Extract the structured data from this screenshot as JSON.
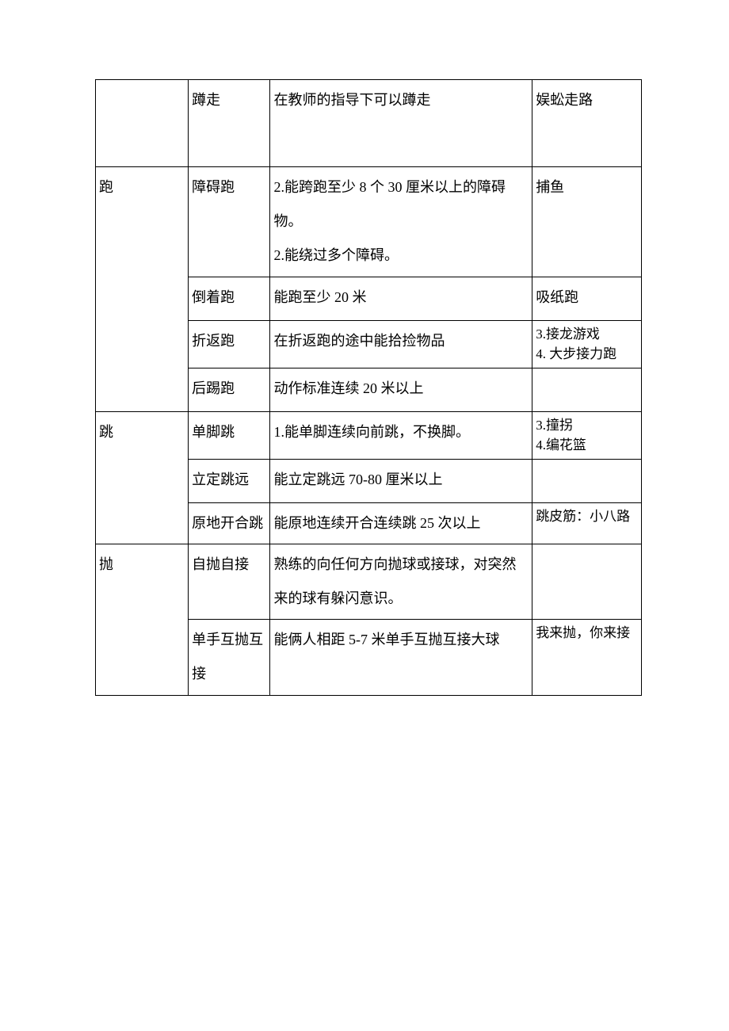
{
  "table": {
    "border_color": "#000000",
    "background_color": "#ffffff",
    "font_family": "SimSun",
    "base_fontsize": 18,
    "tight_fontsize": 17,
    "columns": [
      {
        "name": "category",
        "width_pct": 17
      },
      {
        "name": "subcategory",
        "width_pct": 15
      },
      {
        "name": "standard",
        "width_pct": 48
      },
      {
        "name": "activity",
        "width_pct": 20
      }
    ],
    "rows": [
      {
        "c1": "",
        "c2": "蹲走",
        "c3": "在教师的指导下可以蹲走",
        "c4": "娱蚣走路"
      },
      {
        "c1": "跑",
        "c2": "障碍跑",
        "c3": "2.能跨跑至少 8 个 30 厘米以上的障碍物。\n2.能绕过多个障碍。",
        "c4": "捕鱼",
        "rowspan_c1": 4
      },
      {
        "c2": "倒着跑",
        "c3": "能跑至少 20 米",
        "c4": "吸纸跑"
      },
      {
        "c2": "折返跑",
        "c3": "在折返跑的途中能拾捡物品",
        "c4": "3.接龙游戏\n4. 大步接力跑"
      },
      {
        "c2": "后踢跑",
        "c3": "动作标准连续 20 米以上",
        "c4": ""
      },
      {
        "c1": "跳",
        "c2": "单脚跳",
        "c3": "1.能单脚连续向前跳，不换脚。",
        "c4": "3.撞拐\n4.编花篮",
        "rowspan_c1": 3
      },
      {
        "c2": "立定跳远",
        "c3": "能立定跳远 70-80 厘米以上",
        "c4": ""
      },
      {
        "c2": "原地开合跳",
        "c3": "能原地连续开合连续跳 25 次以上",
        "c4": "跳皮筋：小八路"
      },
      {
        "c1": "抛",
        "c2": "自抛自接",
        "c3": "熟练的向任何方向抛球或接球，对突然来的球有躲闪意识。",
        "c4": "",
        "rowspan_c1": 2
      },
      {
        "c2": "单手互抛互接",
        "c3": "能俩人相距 5-7 米单手互抛互接大球",
        "c4": "我来抛，你来接"
      }
    ]
  }
}
